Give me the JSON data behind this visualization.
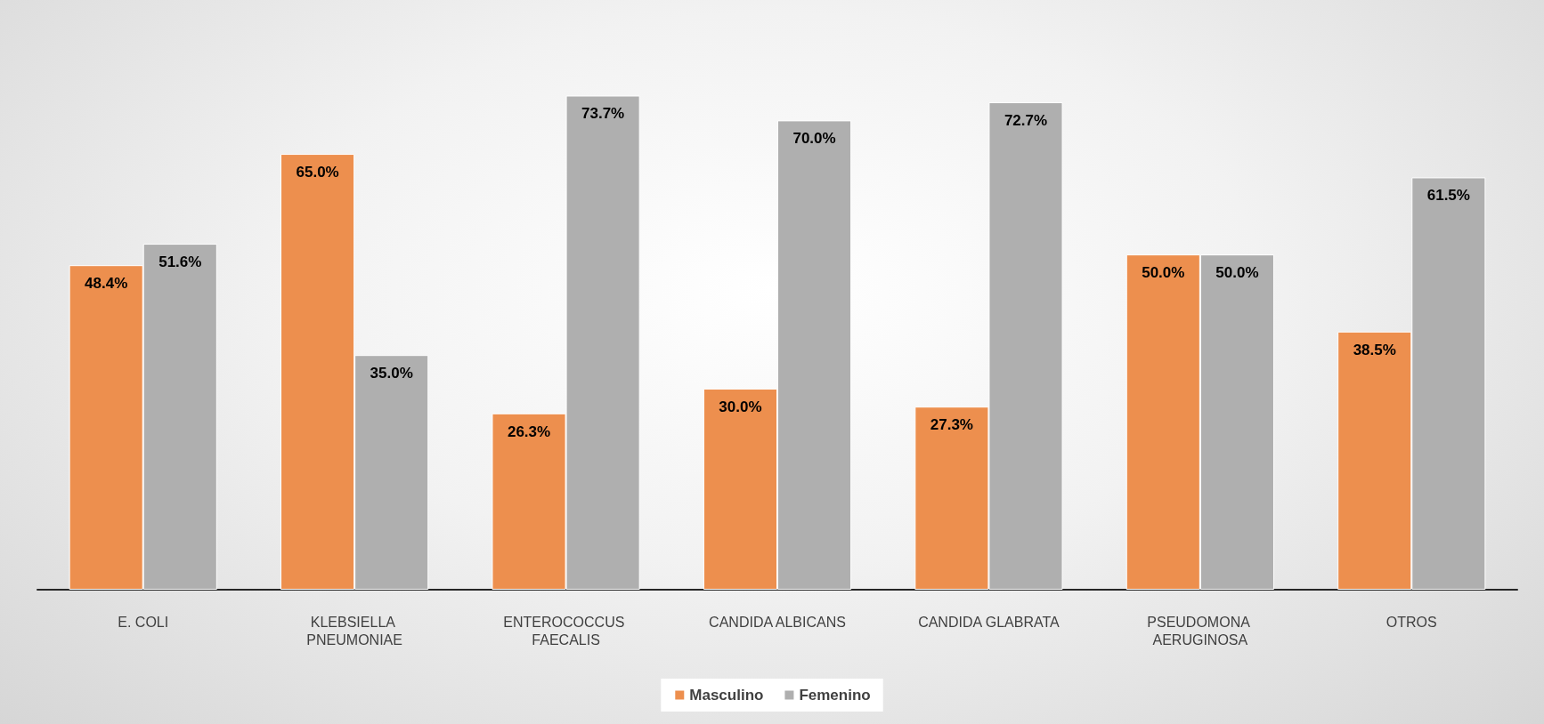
{
  "chart_data": {
    "type": "bar",
    "categories": [
      "E. COLI",
      "KLEBSIELLA PNEUMONIAE",
      "ENTEROCOCCUS FAECALIS",
      "CANDIDA ALBICANS",
      "CANDIDA GLABRATA",
      "PSEUDOMONA AERUGINOSA",
      "OTROS"
    ],
    "series": [
      {
        "name": "Masculino",
        "color": "#ed8f4e",
        "values": [
          48.4,
          65.0,
          26.3,
          30.0,
          27.3,
          50.0,
          38.5
        ],
        "value_labels": [
          "48.4%",
          "65.0%",
          "26.3%",
          "30.0%",
          "27.3%",
          "50.0%",
          "38.5%"
        ]
      },
      {
        "name": "Femenino",
        "color": "#afafaf",
        "values": [
          51.6,
          35.0,
          73.7,
          70.0,
          72.7,
          50.0,
          61.5
        ],
        "value_labels": [
          "51.6%",
          "35.0%",
          "73.7%",
          "70.0%",
          "72.7%",
          "50.0%",
          "61.5%"
        ]
      }
    ],
    "legend": "bottom",
    "grid": false
  }
}
